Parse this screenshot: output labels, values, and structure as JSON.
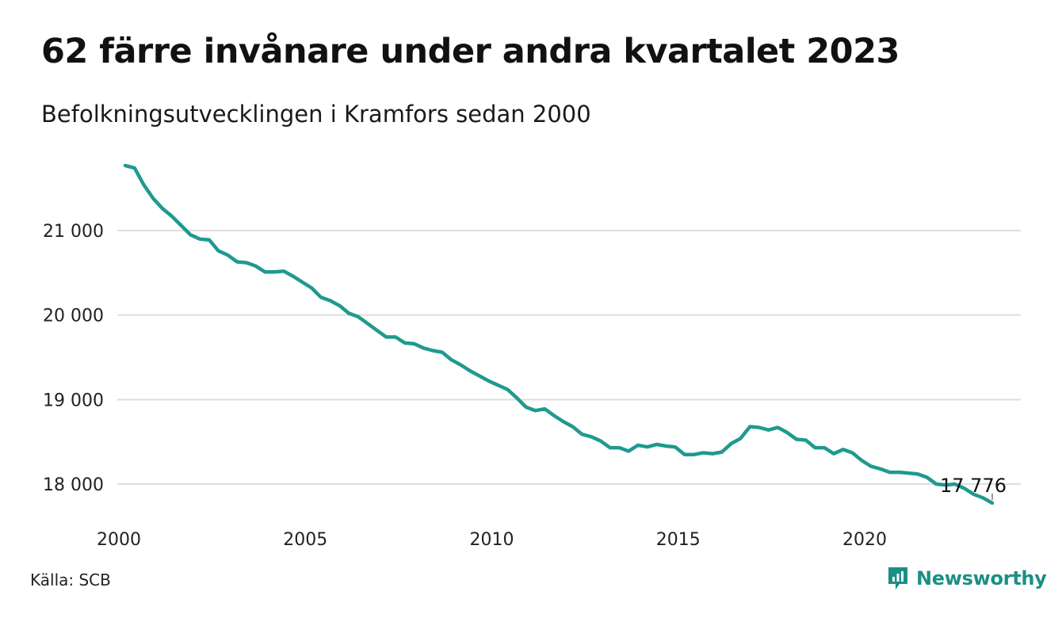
{
  "title": "62 färre invånare under andra kvartalet 2023",
  "subtitle": "Befolkningsutvecklingen i Kramfors sedan 2000",
  "source": "Källa: SCB",
  "brand": {
    "name": "Newsworthy",
    "icon": "newsworthy-logo-icon",
    "color": "#1c8f84"
  },
  "chart_data": {
    "type": "line",
    "title": "62 färre invånare under andra kvartalet 2023",
    "subtitle": "Befolkningsutvecklingen i Kramfors sedan 2000",
    "xlabel": "",
    "ylabel": "",
    "grid": true,
    "line_color": "#1f9a8f",
    "xlim": [
      2000,
      2023.5
    ],
    "ylim": [
      17700,
      21900
    ],
    "x_ticks": [
      2000,
      2005,
      2010,
      2015,
      2020
    ],
    "x_tick_labels": [
      "2000",
      "2005",
      "2010",
      "2015",
      "2020"
    ],
    "y_ticks": [
      18000,
      19000,
      20000,
      21000
    ],
    "y_tick_labels": [
      "18 000",
      "19 000",
      "20 000",
      "21 000"
    ],
    "end_label": "17 776",
    "series": [
      {
        "x": [
          2000.25,
          2000.5,
          2000.75,
          2001.0,
          2001.25,
          2001.5,
          2001.75,
          2002.0,
          2002.25,
          2002.5,
          2002.75,
          2003.0,
          2003.25,
          2003.5,
          2003.75,
          2004.0,
          2004.25,
          2004.5,
          2004.75,
          2005.0,
          2005.25,
          2005.5,
          2005.75,
          2006.0,
          2006.25,
          2006.5,
          2006.75,
          2007.0,
          2007.25,
          2007.5,
          2007.75,
          2008.0,
          2008.25,
          2008.5,
          2008.75,
          2009.0,
          2009.25,
          2009.5,
          2009.75,
          2010.0,
          2010.25,
          2010.5,
          2010.75,
          2011.0,
          2011.25,
          2011.5,
          2011.75,
          2012.0,
          2012.25,
          2012.5,
          2012.75,
          2013.0,
          2013.25,
          2013.5,
          2013.75,
          2014.0,
          2014.25,
          2014.5,
          2014.75,
          2015.0,
          2015.25,
          2015.5,
          2015.75,
          2016.0,
          2016.25,
          2016.5,
          2016.75,
          2017.0,
          2017.25,
          2017.5,
          2017.75,
          2018.0,
          2018.25,
          2018.5,
          2018.75,
          2019.0,
          2019.25,
          2019.5,
          2019.75,
          2020.0,
          2020.25,
          2020.5,
          2020.75,
          2021.0,
          2021.25,
          2021.5,
          2021.75,
          2022.0,
          2022.25,
          2022.5,
          2022.75,
          2023.0,
          2023.25,
          2023.5
        ],
        "y": [
          21770,
          21740,
          21540,
          21380,
          21260,
          21170,
          21060,
          20950,
          20900,
          20890,
          20760,
          20710,
          20630,
          20620,
          20580,
          20510,
          20510,
          20520,
          20460,
          20390,
          20320,
          20210,
          20170,
          20110,
          20020,
          19980,
          19900,
          19820,
          19740,
          19740,
          19670,
          19660,
          19610,
          19580,
          19560,
          19470,
          19410,
          19340,
          19280,
          19220,
          19170,
          19120,
          19020,
          18910,
          18870,
          18890,
          18810,
          18740,
          18680,
          18590,
          18560,
          18510,
          18430,
          18430,
          18390,
          18460,
          18440,
          18470,
          18450,
          18440,
          18350,
          18350,
          18370,
          18360,
          18380,
          18480,
          18540,
          18680,
          18670,
          18640,
          18670,
          18610,
          18530,
          18520,
          18430,
          18430,
          18360,
          18410,
          18370,
          18280,
          18210,
          18180,
          18140,
          18140,
          18130,
          18120,
          18080,
          18000,
          17990,
          18000,
          17950,
          17880,
          17838,
          17776
        ]
      }
    ]
  }
}
